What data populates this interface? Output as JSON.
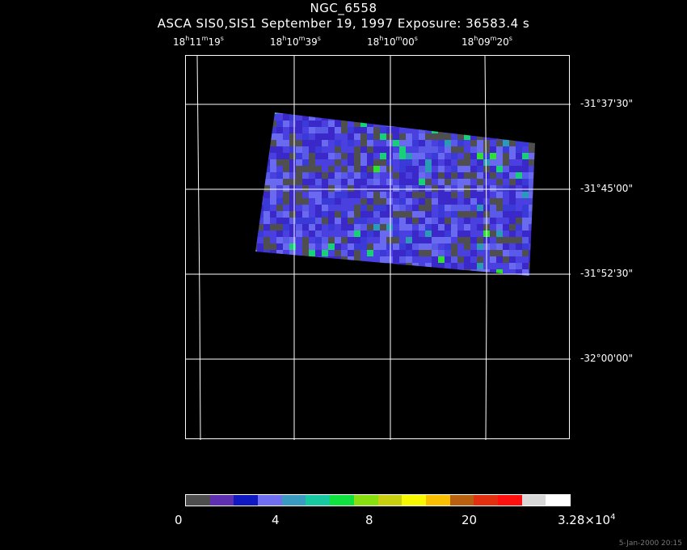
{
  "header": {
    "object": "NGC_6558",
    "subtitle": "ASCA SIS0,SIS1 September 19, 1997 Exposure: 36583.4 s"
  },
  "ra_ticks": [
    {
      "h": "18",
      "m": "11",
      "s": "19"
    },
    {
      "h": "18",
      "m": "10",
      "s": "39"
    },
    {
      "h": "18",
      "m": "10",
      "s": "00"
    },
    {
      "h": "18",
      "m": "09",
      "s": "20"
    }
  ],
  "dec_ticks": [
    "-31°37'30\"",
    "-31°45'00\"",
    "-31°52'30\"",
    "-32°00'00\""
  ],
  "colorbar": {
    "colors": [
      "#4d4d4d",
      "#5e2fb0",
      "#1018c0",
      "#6f6ff0",
      "#3a9abf",
      "#18c8a0",
      "#10e040",
      "#88e010",
      "#c8d010",
      "#f8f800",
      "#f8c000",
      "#b86010",
      "#e03010",
      "#ff1010",
      "#d8d8d8",
      "#ffffff"
    ],
    "labels": {
      "l0": "0",
      "l1": "4",
      "l2": "8",
      "l3": "20",
      "l4_base": "3.28×10",
      "l4_exp": "4"
    }
  },
  "image_palette": [
    "#4f4f4f",
    "#3a28c8",
    "#4a40e0",
    "#6a6af0",
    "#3a3ad8",
    "#5a5ae8",
    "#2a9ab8",
    "#18d078",
    "#30e030"
  ],
  "timestamp": "5-Jan-2000 20:15"
}
